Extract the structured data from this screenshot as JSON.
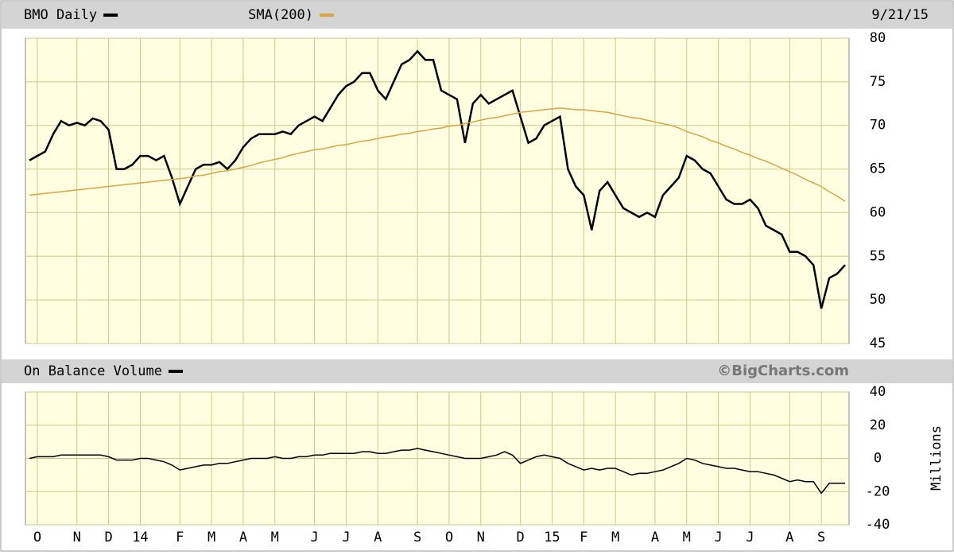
{
  "chart_data": [
    {
      "type": "line",
      "date": "9/21/15",
      "series": [
        {
          "name": "BMO Daily",
          "color": "#000000",
          "values": [
            66,
            66.5,
            67,
            69,
            70.5,
            70,
            70.3,
            70,
            70.8,
            70.5,
            69.5,
            65,
            65,
            65.5,
            66.5,
            66.5,
            66,
            66.5,
            64,
            61,
            63,
            65,
            65.5,
            65.5,
            65.8,
            65,
            66,
            67.5,
            68.5,
            69,
            69,
            69,
            69.3,
            69,
            70,
            70.5,
            71,
            70.5,
            72,
            73.5,
            74.5,
            75,
            76,
            76,
            74,
            73,
            75,
            77,
            77.5,
            78.5,
            77.5,
            77.5,
            74,
            73.5,
            73,
            68,
            72.5,
            73.5,
            72.5,
            73,
            73.5,
            74,
            71,
            68,
            68.5,
            70,
            70.5,
            71,
            65,
            63,
            62,
            58,
            62.5,
            63.5,
            62,
            60.5,
            60,
            59.5,
            60,
            59.5,
            62,
            63,
            64,
            66.5,
            66,
            65,
            64.5,
            63,
            61.5,
            61,
            61,
            61.5,
            60.5,
            58.5,
            58,
            57.5,
            55.5,
            55.5,
            55,
            54,
            49,
            52.5,
            53,
            54
          ]
        },
        {
          "name": "SMA(200)",
          "color": "#d9a441",
          "values": [
            62,
            62.1,
            62.2,
            62.3,
            62.4,
            62.5,
            62.6,
            62.7,
            62.8,
            62.9,
            63,
            63.1,
            63.2,
            63.3,
            63.4,
            63.5,
            63.6,
            63.7,
            63.8,
            63.9,
            64,
            64.2,
            64.3,
            64.5,
            64.7,
            64.8,
            65,
            65.2,
            65.4,
            65.7,
            65.9,
            66.1,
            66.3,
            66.6,
            66.8,
            67,
            67.2,
            67.3,
            67.5,
            67.7,
            67.8,
            68,
            68.2,
            68.3,
            68.5,
            68.7,
            68.8,
            69,
            69.1,
            69.3,
            69.4,
            69.6,
            69.7,
            69.9,
            70,
            70.2,
            70.4,
            70.6,
            70.8,
            70.9,
            71.1,
            71.3,
            71.5,
            71.6,
            71.7,
            71.8,
            71.9,
            72,
            71.9,
            71.8,
            71.8,
            71.7,
            71.6,
            71.5,
            71.3,
            71.1,
            70.9,
            70.8,
            70.6,
            70.4,
            70.2,
            70,
            69.7,
            69.3,
            69,
            68.7,
            68.3,
            68,
            67.6,
            67.3,
            66.9,
            66.6,
            66.2,
            65.9,
            65.5,
            65.1,
            64.7,
            64.3,
            63.8,
            63.4,
            63,
            62.4,
            61.9,
            61.3
          ]
        }
      ],
      "ylim": [
        45,
        80
      ],
      "yticks": [
        45,
        50,
        55,
        60,
        65,
        70,
        75,
        80
      ],
      "grid": true
    },
    {
      "type": "line",
      "credit": "©BigCharts.com",
      "y_label": "Millions",
      "categories": [
        null,
        "O",
        null,
        null,
        null,
        null,
        "N",
        null,
        null,
        null,
        "D",
        null,
        null,
        null,
        "14",
        null,
        null,
        null,
        null,
        "F",
        null,
        null,
        null,
        "M",
        null,
        null,
        null,
        "A",
        null,
        null,
        null,
        "M",
        null,
        null,
        null,
        null,
        "J",
        null,
        null,
        null,
        "J",
        null,
        null,
        null,
        "A",
        null,
        null,
        null,
        null,
        "S",
        null,
        null,
        null,
        "O",
        null,
        null,
        null,
        "N",
        null,
        null,
        null,
        null,
        "D",
        null,
        null,
        null,
        "15",
        null,
        null,
        null,
        "F",
        null,
        null,
        null,
        "M",
        null,
        null,
        null,
        null,
        "A",
        null,
        null,
        null,
        "M",
        null,
        null,
        null,
        "J",
        null,
        null,
        null,
        "J",
        null,
        null,
        null,
        null,
        "A",
        null,
        null,
        null,
        "S",
        null,
        null,
        null
      ],
      "series": [
        {
          "name": "On Balance Volume",
          "color": "#000000",
          "values": [
            0,
            1,
            1,
            1,
            2,
            2,
            2,
            2,
            2,
            2,
            1,
            -1,
            -1,
            -1,
            0,
            0,
            -1,
            -2,
            -4,
            -7,
            -6,
            -5,
            -4,
            -4,
            -3,
            -3,
            -2,
            -1,
            0,
            0,
            0,
            1,
            0,
            0,
            1,
            1,
            2,
            2,
            3,
            3,
            3,
            3,
            4,
            4,
            3,
            3,
            4,
            5,
            5,
            6,
            5,
            4,
            3,
            2,
            1,
            0,
            0,
            0,
            1,
            2,
            4,
            2,
            -3,
            -1,
            1,
            2,
            1,
            0,
            -3,
            -5,
            -7,
            -6,
            -7,
            -6,
            -6,
            -8,
            -10,
            -9,
            -9,
            -8,
            -7,
            -5,
            -3,
            0,
            -1,
            -3,
            -4,
            -5,
            -6,
            -6,
            -7,
            -8,
            -8,
            -9,
            -10,
            -12,
            -14,
            -13,
            -14,
            -14,
            -21,
            -15,
            -15,
            -15
          ]
        }
      ],
      "ylim": [
        -40,
        40
      ],
      "yticks": [
        -40,
        -20,
        0,
        20,
        40
      ],
      "grid": true
    }
  ]
}
